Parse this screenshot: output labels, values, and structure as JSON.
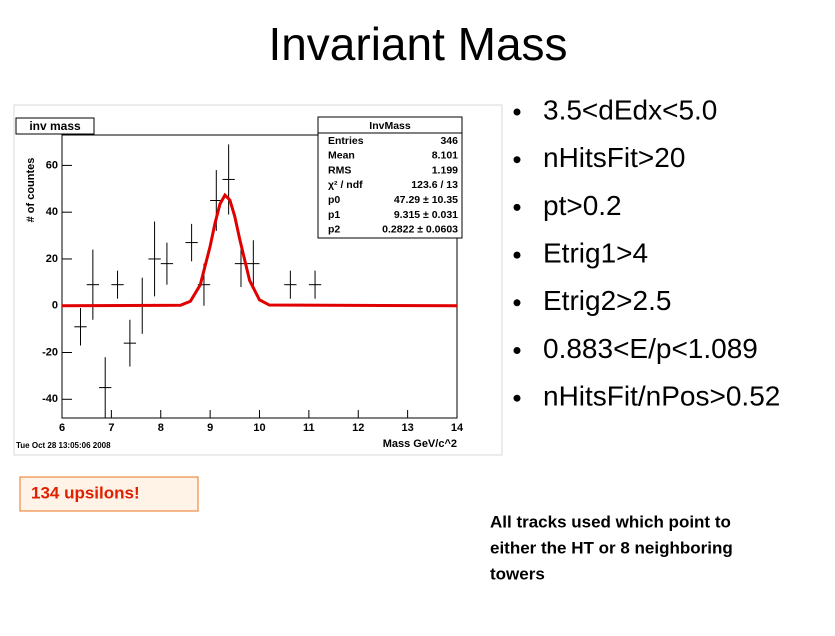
{
  "title": "Invariant Mass",
  "bullets": [
    "3.5<dEdx<5.0",
    "nHitsFit>20",
    "pt>0.2",
    "Etrig1>4",
    "Etrig2>2.5",
    "0.883<E/p<1.089",
    "nHitsFit/nPos>0.52"
  ],
  "callout": "134 upsilons!",
  "note": [
    "All tracks used which point to",
    "either the HT or 8 neighboring",
    "towers"
  ],
  "chart_data": {
    "type": "errorbar",
    "hist_title": "inv mass",
    "timestamp": "Tue Oct 28 13:05:06 2008",
    "x_label": "Mass GeV/c^2",
    "y_label": "# of countes",
    "xlim": [
      6,
      14
    ],
    "ylim": [
      -48,
      73
    ],
    "xticks": [
      6,
      7,
      8,
      9,
      10,
      11,
      12,
      13,
      14
    ],
    "yticks": [
      -40,
      -20,
      0,
      20,
      40,
      60
    ],
    "xerr": 0.125,
    "series": [
      {
        "color": "#000000",
        "x": [
          6.375,
          6.625,
          6.875,
          7.125,
          7.375,
          7.625,
          7.875,
          8.125,
          8.625,
          8.875,
          9.125,
          9.375,
          9.625,
          9.875,
          10.625,
          11.125
        ],
        "values": [
          -9,
          9,
          -35,
          9,
          -16,
          0,
          20,
          18,
          27,
          9,
          45,
          54,
          18,
          18,
          9,
          9
        ],
        "errors": [
          8,
          15,
          13,
          6,
          10,
          12,
          16,
          9,
          8,
          9,
          13,
          15,
          10,
          10,
          6,
          6
        ]
      },
      {
        "type": "line",
        "color": "#e00000",
        "x": [
          6,
          8.4,
          8.6,
          8.8,
          9.0,
          9.1,
          9.2,
          9.3,
          9.4,
          9.5,
          9.6,
          9.8,
          10.0,
          10.2,
          14
        ],
        "values": [
          0,
          0.2,
          1.9,
          8.9,
          25.4,
          35.4,
          43.5,
          47.3,
          45.2,
          38.1,
          28.4,
          10.8,
          2.5,
          0.3,
          0
        ]
      }
    ],
    "stats": {
      "title": "InvMass",
      "rows": [
        [
          "Entries",
          "346"
        ],
        [
          "Mean",
          "8.101"
        ],
        [
          "RMS",
          "1.199"
        ],
        [
          "χ² / ndf",
          "123.6 / 13"
        ],
        [
          "p0",
          "47.29 ± 10.35"
        ],
        [
          "p1",
          "9.315 ± 0.031"
        ],
        [
          "p2",
          "0.2822 ± 0.0603"
        ]
      ]
    }
  }
}
